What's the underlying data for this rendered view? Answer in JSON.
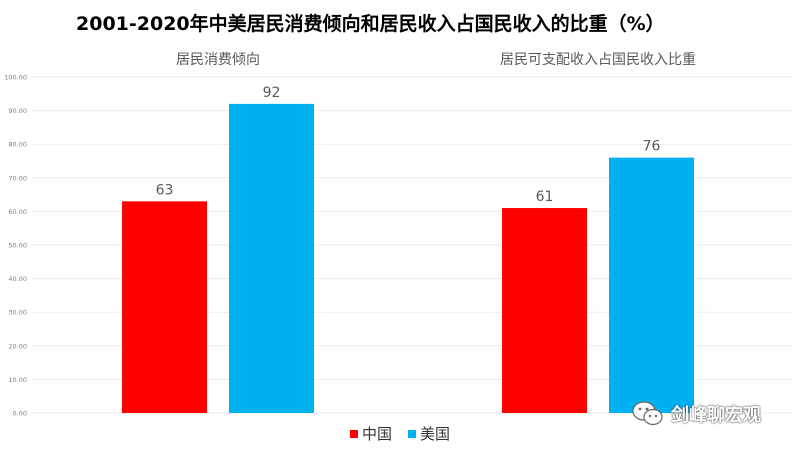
{
  "chart_data": {
    "type": "bar",
    "title": "2001-2020年中美居民消费倾向和居民收入占国民收入的比重（%）",
    "categories": [
      "居民消费倾向",
      "居民可支配收入占国民收入比重"
    ],
    "series": [
      {
        "name": "中国",
        "color": "#ff0000",
        "values": [
          63,
          61
        ]
      },
      {
        "name": "美国",
        "color": "#00b0f0",
        "values": [
          92,
          76
        ]
      }
    ],
    "y_ticks": [
      "0.00",
      "10.00",
      "20.00",
      "30.00",
      "40.00",
      "50.00",
      "60.00",
      "70.00",
      "80.00",
      "90.00",
      "100.00"
    ],
    "ylim": [
      0,
      100
    ],
    "grid": true,
    "legend_position": "bottom",
    "xlabel": "",
    "ylabel": ""
  },
  "watermark": {
    "text": "剑峰聊宏观",
    "icon": "wechat-icon"
  }
}
